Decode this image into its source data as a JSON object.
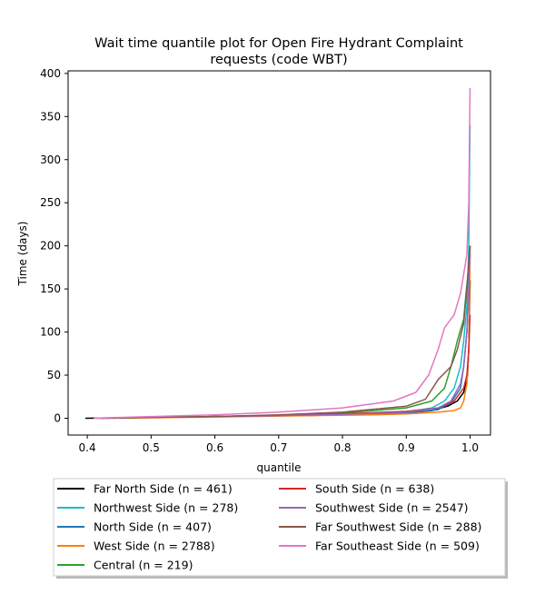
{
  "chart_data": {
    "type": "line",
    "title_line1": "Wait time quantile plot for Open Fire Hydrant Complaint",
    "title_line2": "requests (code WBT)",
    "xlabel": "quantile",
    "ylabel": "Time (days)",
    "xlim": [
      0.37,
      1.032
    ],
    "ylim": [
      -19.5,
      403
    ],
    "x_ticks": [
      0.4,
      0.5,
      0.6,
      0.7,
      0.8,
      0.9,
      1.0
    ],
    "x_tick_labels": [
      "0.4",
      "0.5",
      "0.6",
      "0.7",
      "0.8",
      "0.9",
      "1.0"
    ],
    "y_ticks": [
      0,
      50,
      100,
      150,
      200,
      250,
      300,
      350,
      400
    ],
    "y_tick_labels": [
      "0",
      "50",
      "100",
      "150",
      "200",
      "250",
      "300",
      "350",
      "400"
    ],
    "grid": false,
    "legend_placement": "below",
    "series": [
      {
        "name": "Far North Side (n = 461)",
        "color": "#000000",
        "points": [
          [
            0.397,
            0
          ],
          [
            0.45,
            0.5
          ],
          [
            0.55,
            1.5
          ],
          [
            0.65,
            2.5
          ],
          [
            0.75,
            3.3
          ],
          [
            0.85,
            4.5
          ],
          [
            0.9,
            6
          ],
          [
            0.94,
            9
          ],
          [
            0.965,
            14
          ],
          [
            0.98,
            20
          ],
          [
            0.99,
            30
          ],
          [
            0.996,
            50
          ],
          [
            0.998,
            80
          ],
          [
            0.999,
            120
          ],
          [
            1.0,
            160
          ]
        ]
      },
      {
        "name": "Northwest Side (n = 278)",
        "color": "#17becf",
        "points": [
          [
            0.415,
            0
          ],
          [
            0.5,
            1
          ],
          [
            0.6,
            2
          ],
          [
            0.7,
            3
          ],
          [
            0.8,
            4.5
          ],
          [
            0.9,
            7
          ],
          [
            0.94,
            12
          ],
          [
            0.96,
            20
          ],
          [
            0.975,
            35
          ],
          [
            0.985,
            60
          ],
          [
            0.99,
            90
          ],
          [
            0.995,
            130
          ],
          [
            0.998,
            200
          ],
          [
            0.999,
            280
          ],
          [
            1.0,
            340
          ]
        ]
      },
      {
        "name": "North Side (n = 407)",
        "color": "#1f77b4",
        "points": [
          [
            0.42,
            0
          ],
          [
            0.5,
            1
          ],
          [
            0.6,
            2
          ],
          [
            0.7,
            3
          ],
          [
            0.8,
            4
          ],
          [
            0.9,
            6
          ],
          [
            0.95,
            10
          ],
          [
            0.97,
            18
          ],
          [
            0.985,
            35
          ],
          [
            0.99,
            60
          ],
          [
            0.995,
            100
          ],
          [
            0.998,
            150
          ],
          [
            1.0,
            190
          ]
        ]
      },
      {
        "name": "West Side (n = 2788)",
        "color": "#ff7f0e",
        "points": [
          [
            0.45,
            0
          ],
          [
            0.55,
            1
          ],
          [
            0.65,
            2
          ],
          [
            0.75,
            3
          ],
          [
            0.85,
            4
          ],
          [
            0.9,
            5
          ],
          [
            0.95,
            7
          ],
          [
            0.975,
            9
          ],
          [
            0.985,
            12
          ],
          [
            0.99,
            20
          ],
          [
            0.995,
            40
          ],
          [
            0.998,
            80
          ],
          [
            0.999,
            120
          ],
          [
            1.0,
            200
          ]
        ]
      },
      {
        "name": "Central (n = 219)",
        "color": "#2ca02c",
        "points": [
          [
            0.43,
            0
          ],
          [
            0.5,
            1
          ],
          [
            0.6,
            2
          ],
          [
            0.7,
            3.5
          ],
          [
            0.8,
            6
          ],
          [
            0.9,
            12
          ],
          [
            0.94,
            20
          ],
          [
            0.96,
            35
          ],
          [
            0.97,
            60
          ],
          [
            0.98,
            90
          ],
          [
            0.99,
            115
          ],
          [
            0.993,
            140
          ],
          [
            0.997,
            170
          ],
          [
            1.0,
            200
          ]
        ]
      },
      {
        "name": "South Side (n = 638)",
        "color": "#d62728",
        "points": [
          [
            0.42,
            0
          ],
          [
            0.5,
            1
          ],
          [
            0.6,
            2
          ],
          [
            0.7,
            3.5
          ],
          [
            0.8,
            5
          ],
          [
            0.9,
            8
          ],
          [
            0.95,
            12
          ],
          [
            0.975,
            20
          ],
          [
            0.99,
            35
          ],
          [
            0.995,
            50
          ],
          [
            0.998,
            80
          ],
          [
            1.0,
            120
          ]
        ]
      },
      {
        "name": "Southwest Side (n = 2547)",
        "color": "#9467bd",
        "points": [
          [
            0.43,
            0
          ],
          [
            0.5,
            1
          ],
          [
            0.6,
            2
          ],
          [
            0.7,
            3
          ],
          [
            0.8,
            4.5
          ],
          [
            0.9,
            7
          ],
          [
            0.95,
            12
          ],
          [
            0.97,
            20
          ],
          [
            0.985,
            40
          ],
          [
            0.99,
            60
          ],
          [
            0.995,
            100
          ],
          [
            0.998,
            150
          ],
          [
            1.0,
            200
          ]
        ]
      },
      {
        "name": "Far Southwest Side (n = 288)",
        "color": "#8c564b",
        "points": [
          [
            0.44,
            0
          ],
          [
            0.5,
            1
          ],
          [
            0.6,
            2
          ],
          [
            0.7,
            4
          ],
          [
            0.8,
            7
          ],
          [
            0.9,
            14
          ],
          [
            0.93,
            22
          ],
          [
            0.95,
            45
          ],
          [
            0.97,
            60
          ],
          [
            0.98,
            80
          ],
          [
            0.99,
            110
          ],
          [
            0.995,
            150
          ],
          [
            1.0,
            200
          ]
        ]
      },
      {
        "name": "Far Southeast Side (n = 509)",
        "color": "#e377c2",
        "points": [
          [
            0.41,
            0
          ],
          [
            0.5,
            2
          ],
          [
            0.6,
            4
          ],
          [
            0.7,
            7
          ],
          [
            0.8,
            12
          ],
          [
            0.88,
            20
          ],
          [
            0.915,
            30
          ],
          [
            0.935,
            50
          ],
          [
            0.95,
            80
          ],
          [
            0.96,
            105
          ],
          [
            0.975,
            120
          ],
          [
            0.985,
            145
          ],
          [
            0.995,
            190
          ],
          [
            0.998,
            250
          ],
          [
            0.999,
            320
          ],
          [
            1.0,
            383
          ]
        ]
      }
    ]
  }
}
